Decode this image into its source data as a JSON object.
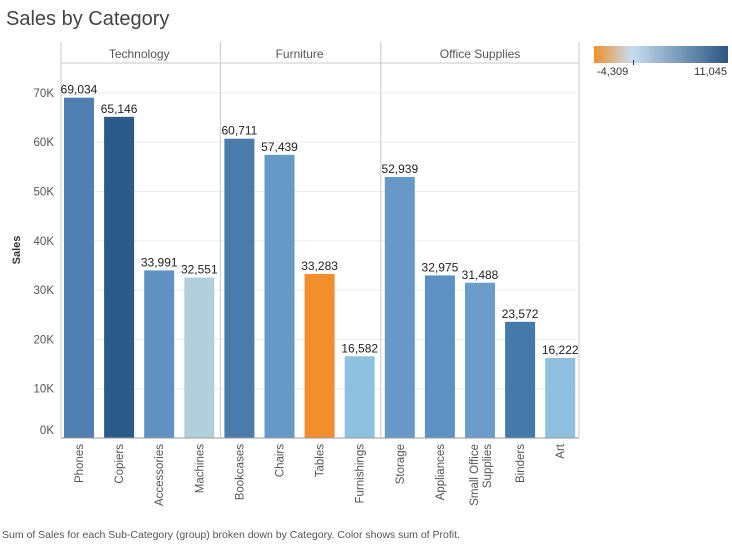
{
  "title": "Sales by Category",
  "caption": "Sum of Sales for each Sub-Category (group) broken down by Category.  Color shows sum of Profit.",
  "legend": {
    "min_label": "-4,309",
    "max_label": "11,045",
    "min_value": -4309,
    "max_value": 11045,
    "color_negative": "#f28e2b",
    "color_zero": "#c7ddee",
    "color_positive": "#2a5783"
  },
  "chart_data": {
    "type": "bar",
    "ylabel": "Sales",
    "xlabel": "",
    "ylim": [
      0,
      75000
    ],
    "y_ticks": [
      0,
      10000,
      20000,
      30000,
      40000,
      50000,
      60000,
      70000
    ],
    "y_tick_labels": [
      "0K",
      "10K",
      "20K",
      "30K",
      "40K",
      "50K",
      "60K",
      "70K"
    ],
    "grid": true,
    "legend_position": "top-right",
    "groups": [
      {
        "name": "Technology",
        "categories": [
          "Phones",
          "Copiers",
          "Accessories",
          "Machines"
        ],
        "values": [
          69034,
          65146,
          33991,
          32551
        ],
        "value_labels": [
          "69,034",
          "65,146",
          "33,991",
          "32,551"
        ],
        "colors": [
          "#4e7fb0",
          "#2c5b8a",
          "#5f91c2",
          "#b2cfdc"
        ]
      },
      {
        "name": "Furniture",
        "categories": [
          "Bookcases",
          "Chairs",
          "Tables",
          "Furnishings"
        ],
        "values": [
          60711,
          57439,
          33283,
          16582
        ],
        "value_labels": [
          "60,711",
          "57,439",
          "33,283",
          "16,582"
        ],
        "colors": [
          "#4a7bab",
          "#6699c8",
          "#f28e2b",
          "#8fc0e0"
        ]
      },
      {
        "name": "Office Supplies",
        "categories": [
          "Storage",
          "Appliances",
          "Small Office Supplies",
          "Binders",
          "Art"
        ],
        "values": [
          52939,
          32975,
          31488,
          23572,
          16222
        ],
        "value_labels": [
          "52,939",
          "32,975",
          "31,488",
          "23,572",
          "16,222"
        ],
        "colors": [
          "#6699c8",
          "#5e91c3",
          "#6a9ccb",
          "#4579aa",
          "#8ec0e2"
        ]
      }
    ]
  }
}
